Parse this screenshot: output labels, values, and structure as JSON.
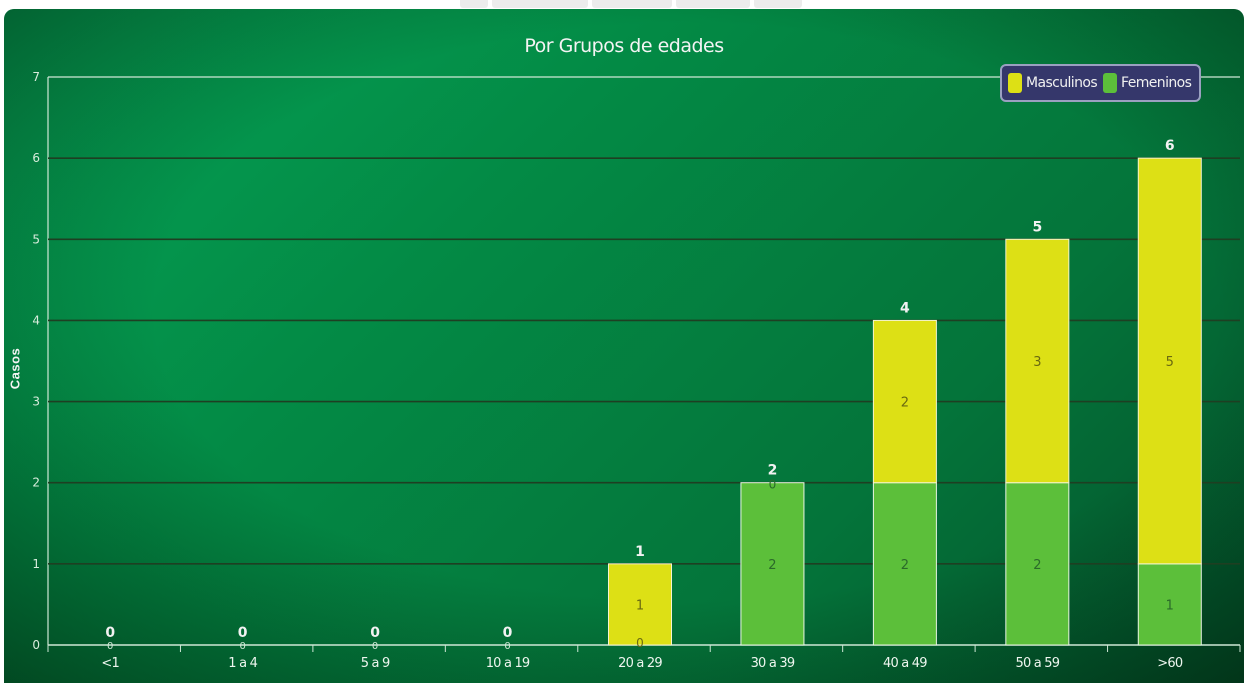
{
  "chart_data": {
    "type": "bar",
    "stacked": true,
    "title": "Por Grupos de edades",
    "xlabel": "",
    "ylabel": "Casos",
    "ylim": [
      0,
      7
    ],
    "yticks": [
      0,
      1,
      2,
      3,
      4,
      5,
      6,
      7
    ],
    "grid": true,
    "legend_position": "top-right",
    "categories": [
      "<1",
      "1 a 4",
      "5 a 9",
      "10 a 19",
      "20 a 29",
      "30 a 39",
      "40 a 49",
      "50 a 59",
      ">60"
    ],
    "series": [
      {
        "name": "Femeninos",
        "color": "#5cbf3a",
        "values": [
          0,
          0,
          0,
          0,
          0,
          2,
          2,
          2,
          1
        ]
      },
      {
        "name": "Masculinos",
        "color": "#dde015",
        "values": [
          0,
          0,
          0,
          0,
          1,
          0,
          2,
          3,
          5
        ]
      }
    ],
    "totals": [
      0,
      0,
      0,
      0,
      1,
      2,
      4,
      5,
      6
    ],
    "legend": [
      {
        "name": "Masculinos",
        "color": "#dde015"
      },
      {
        "name": "Femeninos",
        "color": "#5cbf3a"
      }
    ]
  }
}
